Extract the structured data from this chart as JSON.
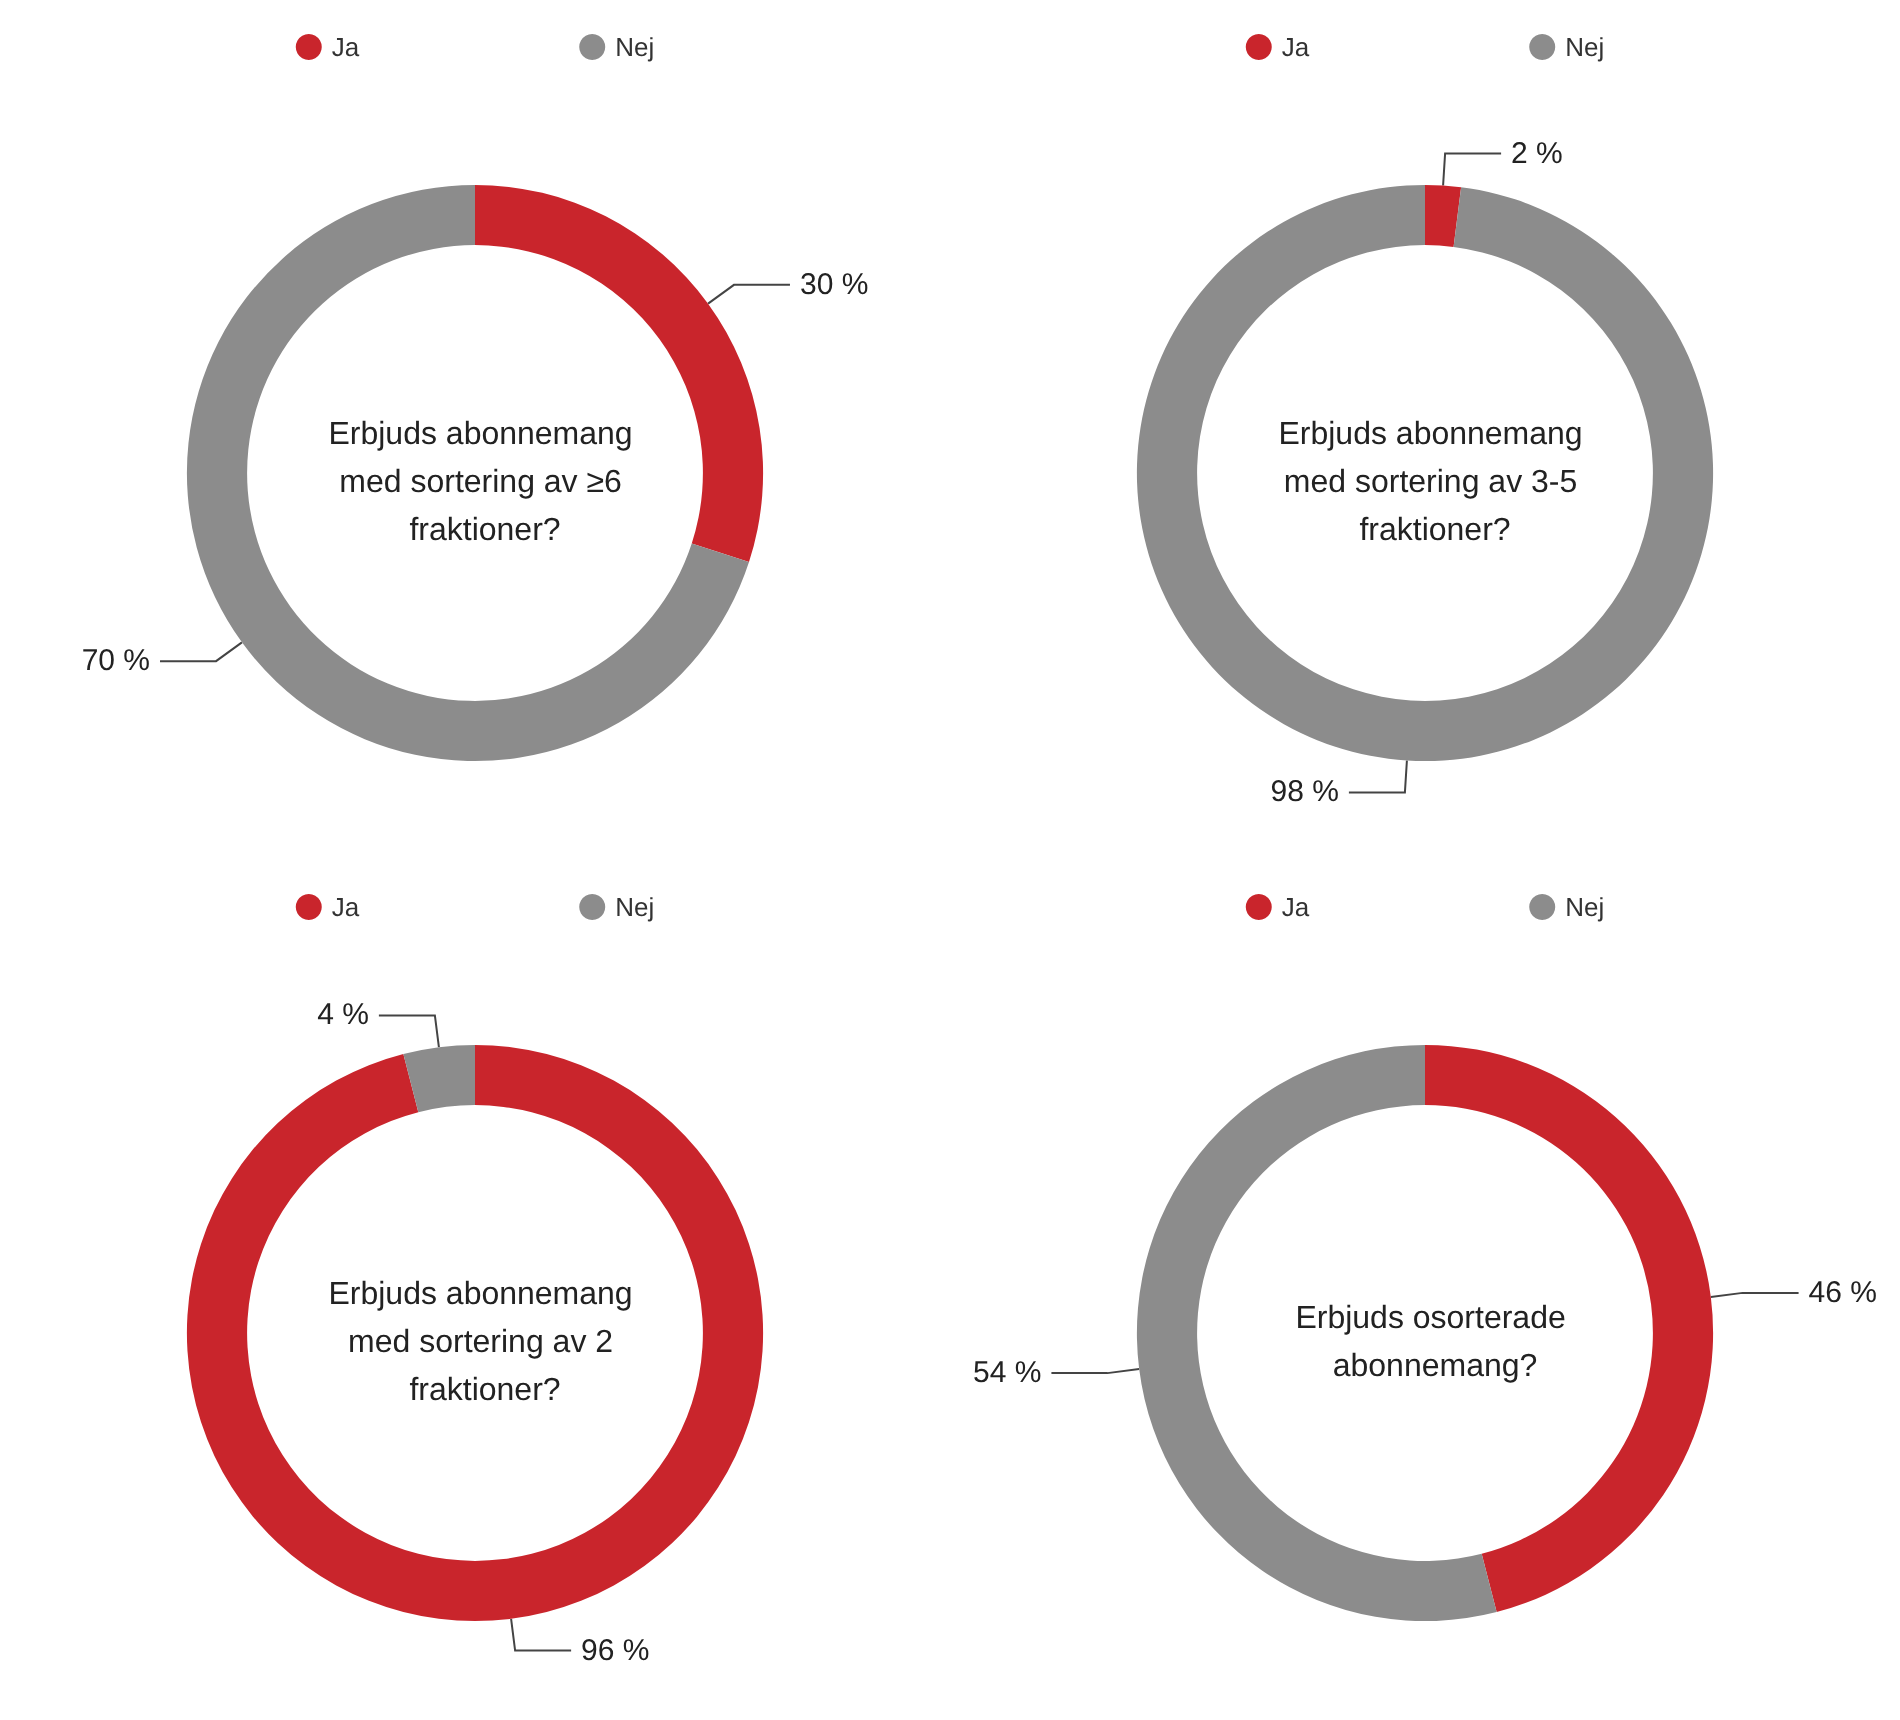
{
  "chart_data": [
    {
      "type": "donut",
      "title": "Erbjuds abonnemang med sortering av ≥6 fraktioner?",
      "categories": [
        "Ja",
        "Nej"
      ],
      "values": [
        30,
        70
      ],
      "colors": [
        "#c9252c",
        "#8c8c8c"
      ],
      "value_labels": [
        "30 %",
        "70 %"
      ],
      "legend": "top"
    },
    {
      "type": "donut",
      "title": "Erbjuds abonnemang med sortering av 3-5 fraktioner?",
      "categories": [
        "Ja",
        "Nej"
      ],
      "values": [
        2,
        98
      ],
      "colors": [
        "#c9252c",
        "#8c8c8c"
      ],
      "value_labels": [
        "2 %",
        "98 %"
      ],
      "legend": "top"
    },
    {
      "type": "donut",
      "title": "Erbjuds abonnemang med sortering av 2 fraktioner?",
      "categories": [
        "Ja",
        "Nej"
      ],
      "values": [
        96,
        4
      ],
      "colors": [
        "#c9252c",
        "#8c8c8c"
      ],
      "value_labels": [
        "96 %",
        "4 %"
      ],
      "legend": "top"
    },
    {
      "type": "donut",
      "title": "Erbjuds osorterade abonnemang?",
      "categories": [
        "Ja",
        "Nej"
      ],
      "values": [
        46,
        54
      ],
      "colors": [
        "#c9252c",
        "#8c8c8c"
      ],
      "value_labels": [
        "46 %",
        "54 %"
      ],
      "legend": "top"
    }
  ]
}
